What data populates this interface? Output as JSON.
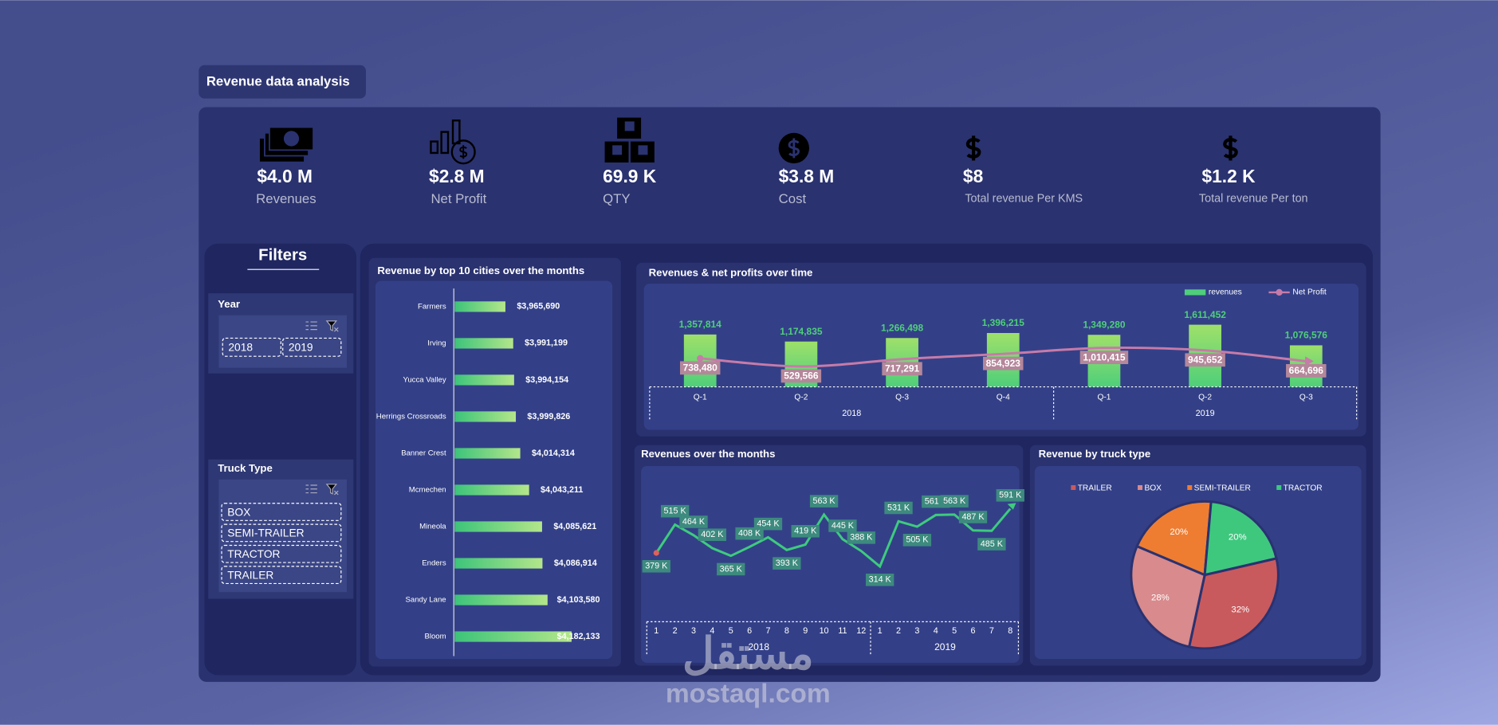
{
  "title": "Revenue data analysis",
  "kpis": [
    {
      "value": "$4.0 M",
      "label": "Revenues"
    },
    {
      "value": "$2.8 M",
      "label": "Net Profit"
    },
    {
      "value": "69.9 K",
      "label": "QTY"
    },
    {
      "value": "$3.8 M",
      "label": "Cost"
    },
    {
      "value": "$8",
      "label": "Total revenue Per KMS"
    },
    {
      "value": "$1.2 K",
      "label": "Total revenue Per ton"
    }
  ],
  "filters": {
    "title": "Filters",
    "slicers": [
      {
        "title": "Year",
        "options": [
          "2018",
          "2019"
        ]
      },
      {
        "title": "Truck Type",
        "options": [
          "BOX",
          "SEMI-TRAILER",
          "TRACTOR",
          "TRAILER"
        ]
      }
    ]
  },
  "watermark": {
    "arabic": "مستقل",
    "latin": "mostaql.com"
  },
  "chart_data": [
    {
      "type": "hbar",
      "title": "Revenue by top 10 cities over the months",
      "categories": [
        "Farmers",
        "Irving",
        "Yucca Valley",
        "Herrings Crossroads",
        "Banner Crest",
        "Mcmechen",
        "Mineola",
        "Enders",
        "Sandy Lane",
        "Bloom"
      ],
      "values": [
        3965690,
        3991199,
        3994154,
        3999826,
        4014314,
        4043211,
        4085621,
        4086914,
        4103580,
        4182133
      ],
      "value_labels": [
        "$3,965,690",
        "$3,991,199",
        "$3,994,154",
        "$3,999,826",
        "$4,014,314",
        "$4,043,211",
        "$4,085,621",
        "$4,086,914",
        "$4,103,580",
        "$4,182,133"
      ],
      "xlim": [
        3800000,
        4300000
      ],
      "color": "#3cc47a"
    },
    {
      "type": "combo",
      "title": "Revenues & net profits over time",
      "categories": [
        "Q-1",
        "Q-2",
        "Q-3",
        "Q-4",
        "Q-1",
        "Q-2",
        "Q-3"
      ],
      "category_groups": [
        {
          "label": "2018",
          "count": 4
        },
        {
          "label": "2019",
          "count": 3
        }
      ],
      "series": [
        {
          "name": "revenues",
          "kind": "bar",
          "color": "#4fcf7a",
          "values": [
            1357814,
            1174835,
            1266498,
            1396215,
            1349280,
            1611452,
            1076576
          ],
          "value_labels": [
            "1,357,814",
            "1,174,835",
            "1,266,498",
            "1,396,215",
            "1,349,280",
            "1,611,452",
            "1,076,576"
          ]
        },
        {
          "name": "Net Profit",
          "kind": "line",
          "color": "#c77ba8",
          "values": [
            738480,
            529566,
            717291,
            854923,
            1010415,
            945652,
            664696
          ],
          "value_labels": [
            "738,480",
            "529,566",
            "717,291",
            "854,923",
            "1,010,415",
            "945,652",
            "664,696"
          ]
        }
      ],
      "ylim": [
        0,
        2600000
      ],
      "legend": "top-right"
    },
    {
      "type": "line",
      "title": "Revenues over the months",
      "categories": [
        "1",
        "2",
        "3",
        "4",
        "5",
        "6",
        "7",
        "8",
        "9",
        "10",
        "11",
        "12",
        "1",
        "2",
        "3",
        "4",
        "5",
        "6",
        "7",
        "8"
      ],
      "category_groups": [
        {
          "label": "2018",
          "count": 12
        },
        {
          "label": "2019",
          "count": 8
        }
      ],
      "values": [
        379,
        515,
        464,
        402,
        365,
        408,
        454,
        393,
        419,
        563,
        445,
        388,
        314,
        531,
        505,
        561,
        563,
        487,
        485,
        591
      ],
      "value_labels": [
        "379 K",
        "515 K",
        "464 K",
        "402 K",
        "365 K",
        "408 K",
        "454 K",
        "393 K",
        "419 K",
        "563 K",
        "445 K",
        "388 K",
        "314 K",
        "531 K",
        "505 K",
        "561 K",
        "563 K",
        "487 K",
        "485 K",
        "591 K"
      ],
      "color": "#3ecb7e",
      "ylim": [
        200,
        750
      ]
    },
    {
      "type": "pie",
      "title": "Revenue by truck type",
      "categories": [
        "TRAILER",
        "BOX",
        "SEMI-TRAILER",
        "TRACTOR"
      ],
      "values": [
        32,
        28,
        20,
        20
      ],
      "value_labels": [
        "32%",
        "28%",
        "20%",
        "20%"
      ],
      "colors": [
        "#c85a5e",
        "#d88a8c",
        "#ee7d32",
        "#3ec87e"
      ],
      "legend": "top"
    }
  ]
}
